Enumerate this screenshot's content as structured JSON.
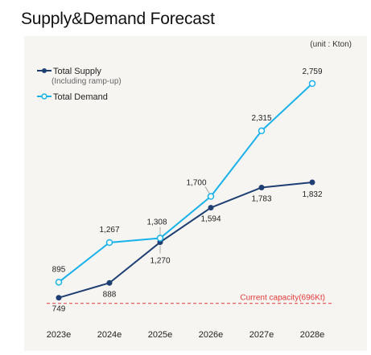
{
  "page": {
    "title": "Supply&Demand Forecast"
  },
  "colors": {
    "supply": "#1f3f73",
    "demand": "#1ab1ea",
    "capacity": "#e23a3a"
  },
  "chart_data": {
    "type": "line",
    "title": "Supply&Demand Forecast",
    "unit_label": "(unit : Kton)",
    "x": [
      "2023e",
      "2024e",
      "2025e",
      "2026e",
      "2027e",
      "2028e"
    ],
    "series": [
      {
        "name": "Total Supply",
        "subtitle": "(Including ramp-up)",
        "values": [
          749,
          888,
          1270,
          1594,
          1783,
          1832
        ],
        "labels": [
          "749",
          "888",
          "1,270",
          "1,594",
          "1,783",
          "1,832"
        ],
        "marker": "filled"
      },
      {
        "name": "Total Demand",
        "values": [
          895,
          1267,
          1308,
          1700,
          2315,
          2759
        ],
        "labels": [
          "895",
          "1,267",
          "1,308",
          "1,700",
          "2,315",
          "2,759"
        ],
        "marker": "hollow"
      }
    ],
    "reference_line": {
      "value": 696,
      "label": "Current capacity(696Kt)"
    },
    "legend_position": "top-left",
    "grid": false
  }
}
